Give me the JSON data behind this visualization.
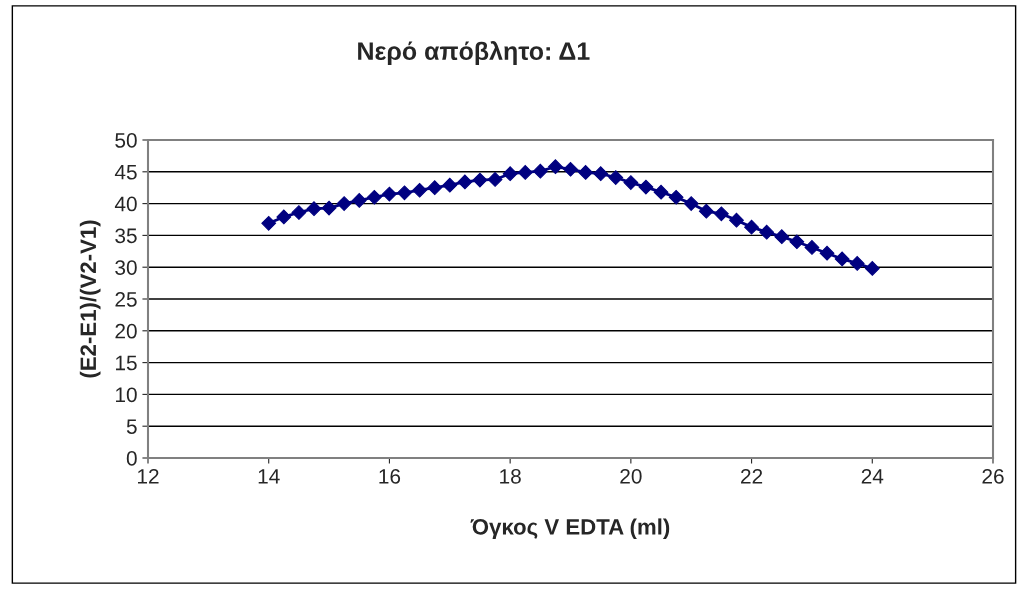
{
  "chart_data": {
    "type": "line",
    "title": "Νερό απόβλητο: Δ1",
    "xlabel": "Όγκος V EDTA (ml)",
    "ylabel": "(E2-E1)/(V2-V1)",
    "x": [
      14,
      14.25,
      14.5,
      14.75,
      15,
      15.25,
      15.5,
      15.75,
      16,
      16.25,
      16.5,
      16.75,
      17,
      17.25,
      17.5,
      17.75,
      18,
      18.25,
      18.5,
      18.75,
      19,
      19.25,
      19.5,
      19.75,
      20,
      20.25,
      20.5,
      20.75,
      21,
      21.25,
      21.5,
      21.75,
      22,
      22.25,
      22.5,
      22.75,
      23,
      23.25,
      23.5,
      23.75,
      24
    ],
    "series": [
      {
        "color": "#000080",
        "values": [
          36.9,
          37.9,
          38.6,
          39.2,
          39.3,
          40.0,
          40.5,
          41.0,
          41.5,
          41.7,
          42.1,
          42.5,
          42.9,
          43.4,
          43.7,
          43.8,
          44.7,
          44.9,
          45.1,
          45.8,
          45.4,
          44.9,
          44.7,
          44.1,
          43.3,
          42.6,
          41.8,
          41.0,
          40.0,
          38.8,
          38.4,
          37.4,
          36.3,
          35.5,
          34.8,
          34.0,
          33.1,
          32.2,
          31.3,
          30.6,
          29.8
        ]
      }
    ],
    "xlim": [
      12,
      26
    ],
    "xticks": [
      12,
      14,
      16,
      18,
      20,
      22,
      24,
      26
    ],
    "ylim": [
      0,
      50
    ],
    "yticks": [
      0,
      5,
      10,
      15,
      20,
      25,
      30,
      35,
      40,
      45,
      50
    ],
    "grid": "y",
    "marker": "diamond",
    "line_style": "solid",
    "legend": false
  }
}
